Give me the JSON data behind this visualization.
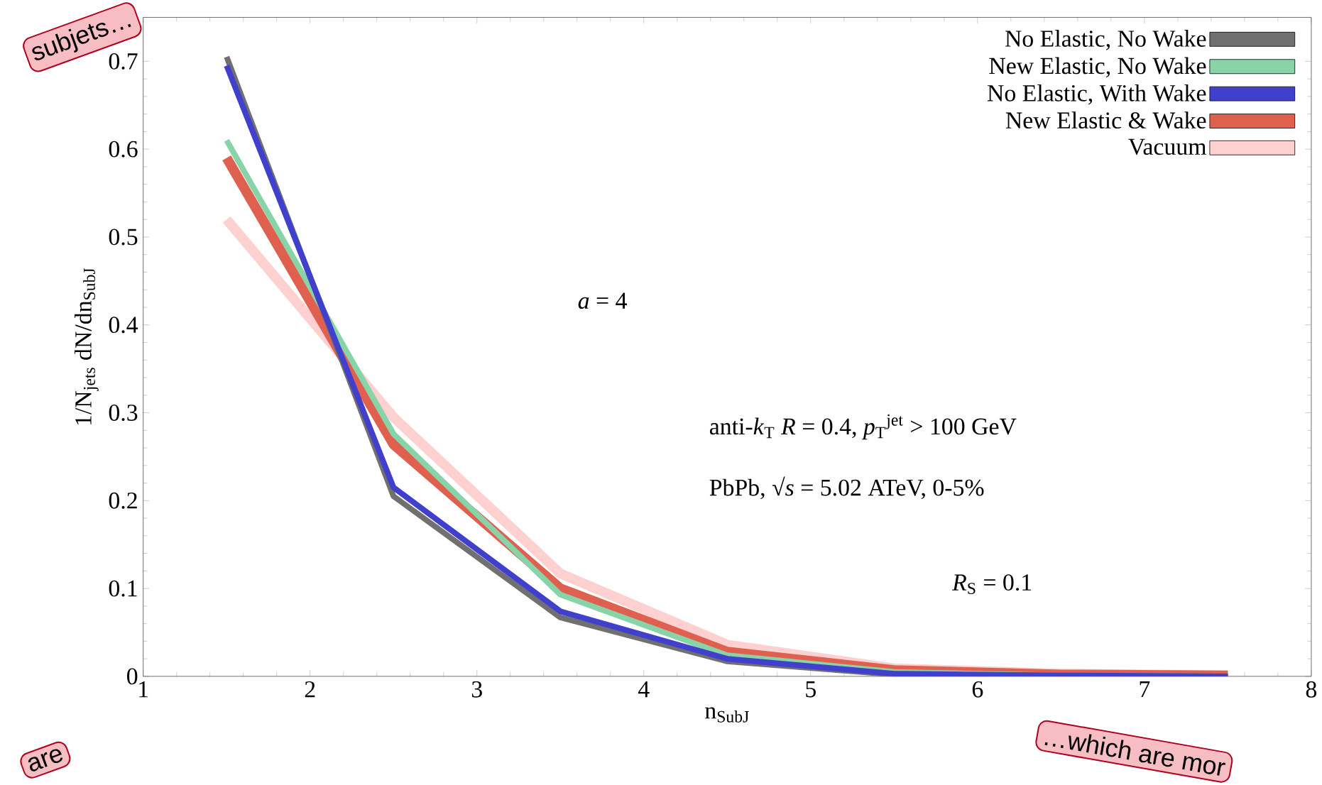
{
  "chart_data": {
    "type": "line",
    "xlabel": "n$_{SubJ}$",
    "ylabel": "1/N$_{jets}$ dN/dn$_{SubJ}$",
    "x": [
      1.5,
      2.5,
      3.5,
      4.5,
      5.5,
      6.5,
      7.5
    ],
    "series": [
      {
        "name": "No Elastic, No Wake",
        "color": "#707070",
        "values": [
          0.705,
          0.205,
          0.067,
          0.017,
          0.002,
          0.001,
          0
        ]
      },
      {
        "name": "New Elastic, No Wake",
        "color": "#88d4a8",
        "values": [
          0.61,
          0.276,
          0.093,
          0.024,
          0.005,
          0.001,
          0
        ]
      },
      {
        "name": "No Elastic, With Wake",
        "color": "#4040cc",
        "values": [
          0.695,
          0.215,
          0.074,
          0.02,
          0.003,
          0.001,
          0
        ]
      },
      {
        "name": "New Elastic & Wake",
        "color": "#e06050",
        "values": [
          0.59,
          0.264,
          0.1,
          0.028,
          0.007,
          0.002,
          0.001
        ]
      },
      {
        "name": "Vacuum",
        "color": "#ffd0d0",
        "values": [
          0.52,
          0.295,
          0.117,
          0.036,
          0.009,
          0.003,
          0.001
        ]
      }
    ],
    "xlim": [
      1,
      8
    ],
    "xticks": [
      1,
      2,
      3,
      4,
      5,
      6,
      7,
      8
    ],
    "ylim": [
      0,
      0.75
    ],
    "yticks": [
      0,
      0.1,
      0.2,
      0.3,
      0.4,
      0.5,
      0.6,
      0.7
    ],
    "legend": "top right",
    "grid": false,
    "annotations": [
      "*a* = 4",
      "anti-*k*$_{T}$ *R* = 0.4, *p*$_{T}$$^{jet}$ > 100 GeV",
      "PbPb, √*s* = 5.02 ATeV, 0-5%",
      "*R*$_{S}$ = 0.1",
      "subjets…",
      "are",
      "…which are mor"
    ]
  }
}
